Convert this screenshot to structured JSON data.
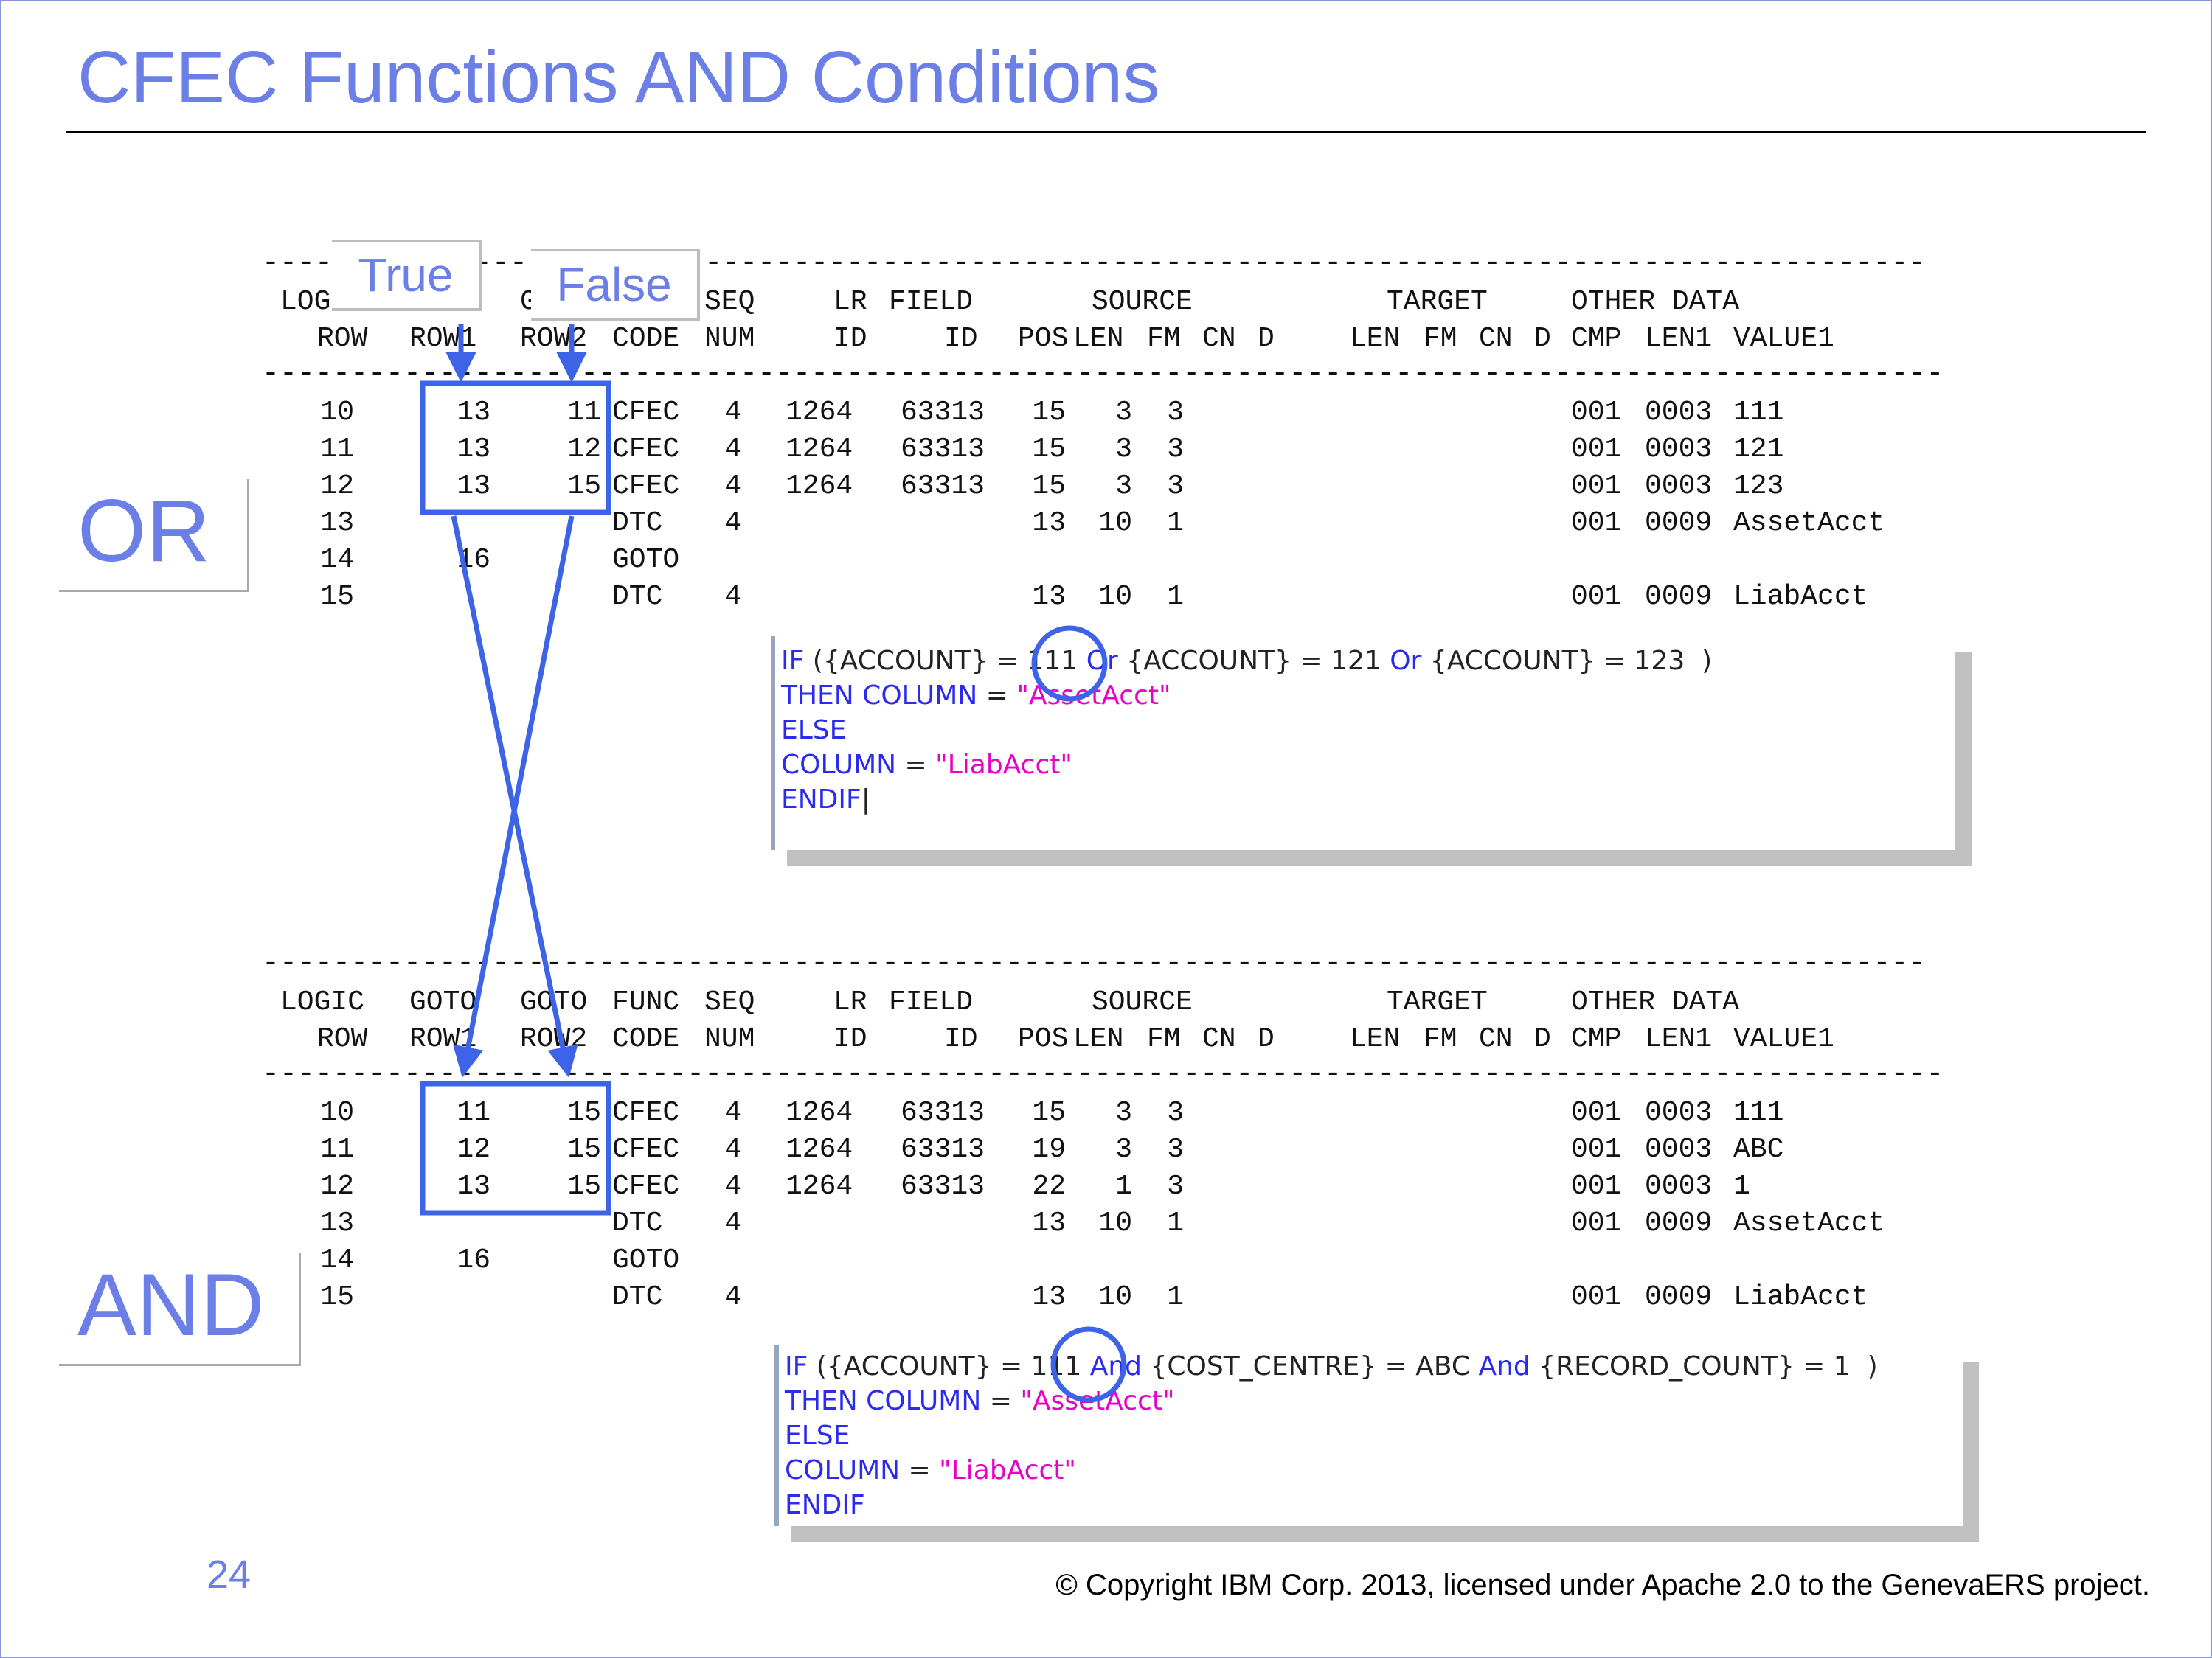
{
  "slide": {
    "title": "CFEC Functions AND Conditions",
    "page_number": "24",
    "copyright": "© Copyright IBM Corp. 2013, licensed under Apache 2.0 to the GenevaERS project."
  },
  "callouts": {
    "true_label": "True",
    "false_label": "False",
    "or_label": "OR",
    "and_label": "AND"
  },
  "table_header": {
    "line1": {
      "logic": "LOGIC",
      "goto1": "GOTO",
      "goto2": "GOTO",
      "func": "FUNC",
      "seq": "SEQ",
      "lr": "LR",
      "field": "FIELD",
      "source": "SOURCE",
      "target": "TARGET",
      "other": "OTHER DATA"
    },
    "line2": {
      "row": "ROW",
      "row1": "ROW1",
      "row2": "ROW2",
      "code": "CODE",
      "num": "NUM",
      "id": "ID",
      "fid": "ID",
      "pos": "POS",
      "len": "LEN",
      "fm": "FM",
      "cn": "CN",
      "d": "D",
      "tlen": "LEN",
      "tfm": "FM",
      "tcn": "CN",
      "td": "D",
      "cmp": "CMP",
      "len1": "LEN1",
      "value1": "VALUE1"
    }
  },
  "or_table": [
    {
      "logic": "10",
      "goto1": "13",
      "goto2": "11",
      "func": "CFEC",
      "seq": "4",
      "lr": "1264",
      "field": "63313",
      "pos": "15",
      "len": "3",
      "fm": "3",
      "cmp": "001",
      "len1": "0003",
      "value1": "111"
    },
    {
      "logic": "11",
      "goto1": "13",
      "goto2": "12",
      "func": "CFEC",
      "seq": "4",
      "lr": "1264",
      "field": "63313",
      "pos": "15",
      "len": "3",
      "fm": "3",
      "cmp": "001",
      "len1": "0003",
      "value1": "121"
    },
    {
      "logic": "12",
      "goto1": "13",
      "goto2": "15",
      "func": "CFEC",
      "seq": "4",
      "lr": "1264",
      "field": "63313",
      "pos": "15",
      "len": "3",
      "fm": "3",
      "cmp": "001",
      "len1": "0003",
      "value1": "123"
    },
    {
      "logic": "13",
      "goto1": "",
      "goto2": "",
      "func": "DTC",
      "seq": "4",
      "lr": "",
      "field": "",
      "pos": "13",
      "len": "10",
      "fm": "1",
      "cmp": "001",
      "len1": "0009",
      "value1": "AssetAcct"
    },
    {
      "logic": "14",
      "goto1": "16",
      "goto2": "",
      "func": "GOTO",
      "seq": "",
      "lr": "",
      "field": "",
      "pos": "",
      "len": "",
      "fm": "",
      "cmp": "",
      "len1": "",
      "value1": ""
    },
    {
      "logic": "15",
      "goto1": "",
      "goto2": "",
      "func": "DTC",
      "seq": "4",
      "lr": "",
      "field": "",
      "pos": "13",
      "len": "10",
      "fm": "1",
      "cmp": "001",
      "len1": "0009",
      "value1": "LiabAcct"
    }
  ],
  "and_table": [
    {
      "logic": "10",
      "goto1": "11",
      "goto2": "15",
      "func": "CFEC",
      "seq": "4",
      "lr": "1264",
      "field": "63313",
      "pos": "15",
      "len": "3",
      "fm": "3",
      "cmp": "001",
      "len1": "0003",
      "value1": "111"
    },
    {
      "logic": "11",
      "goto1": "12",
      "goto2": "15",
      "func": "CFEC",
      "seq": "4",
      "lr": "1264",
      "field": "63313",
      "pos": "19",
      "len": "3",
      "fm": "3",
      "cmp": "001",
      "len1": "0003",
      "value1": "ABC"
    },
    {
      "logic": "12",
      "goto1": "13",
      "goto2": "15",
      "func": "CFEC",
      "seq": "4",
      "lr": "1264",
      "field": "63313",
      "pos": "22",
      "len": "1",
      "fm": "3",
      "cmp": "001",
      "len1": "0003",
      "value1": "1"
    },
    {
      "logic": "13",
      "goto1": "",
      "goto2": "",
      "func": "DTC",
      "seq": "4",
      "lr": "",
      "field": "",
      "pos": "13",
      "len": "10",
      "fm": "1",
      "cmp": "001",
      "len1": "0009",
      "value1": "AssetAcct"
    },
    {
      "logic": "14",
      "goto1": "16",
      "goto2": "",
      "func": "GOTO",
      "seq": "",
      "lr": "",
      "field": "",
      "pos": "",
      "len": "",
      "fm": "",
      "cmp": "",
      "len1": "",
      "value1": ""
    },
    {
      "logic": "15",
      "goto1": "",
      "goto2": "",
      "func": "DTC",
      "seq": "4",
      "lr": "",
      "field": "",
      "pos": "13",
      "len": "10",
      "fm": "1",
      "cmp": "001",
      "len1": "0009",
      "value1": "LiabAcct"
    }
  ],
  "or_code": {
    "l1": {
      "a": "IF ",
      "b": "({ACCOUNT} = 111 ",
      "c": "Or",
      "d": " {ACCOUNT} = 121 ",
      "e": "Or",
      "f": " {ACCOUNT} = 123  )"
    },
    "l2": {
      "a": "THEN COLUMN",
      "b": " = ",
      "c": "\"AssetAcct\""
    },
    "l3": {
      "a": "ELSE"
    },
    "l4": {
      "a": "COLUMN",
      "b": " = ",
      "c": "\"LiabAcct\""
    },
    "l5": {
      "a": "ENDIF"
    }
  },
  "and_code": {
    "l1": {
      "a": "IF ",
      "b": "({ACCOUNT} = 111 ",
      "c": "And",
      "d": " {COST_CENTRE} = ABC ",
      "e": "And",
      "f": " {RECORD_COUNT} = 1  )"
    },
    "l2": {
      "a": "THEN COLUMN",
      "b": " = ",
      "c": "\"AssetAcct\""
    },
    "l3": {
      "a": "ELSE"
    },
    "l4": {
      "a": "COLUMN",
      "b": " = ",
      "c": "\"LiabAcct\""
    },
    "l5": {
      "a": "ENDIF"
    }
  },
  "colors": {
    "accent": "#6b7fe6",
    "arrow": "#3d63e6",
    "keyword": "#2a2af0",
    "string": "#e800c8"
  }
}
